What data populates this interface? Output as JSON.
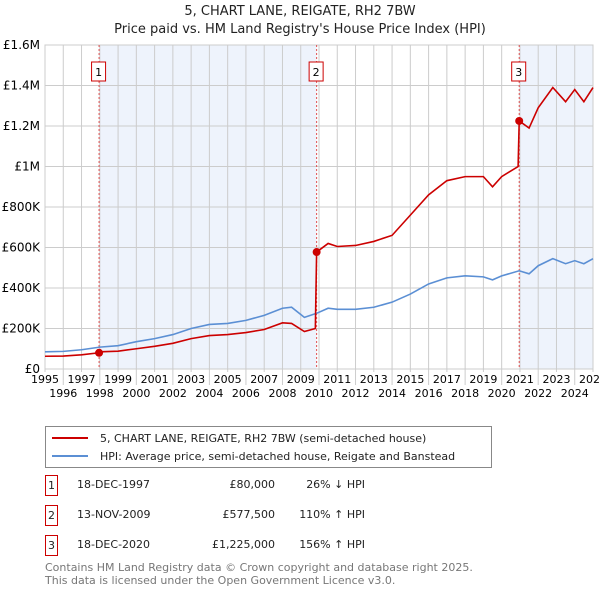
{
  "chart_data": {
    "type": "line",
    "title": "5, CHART LANE, REIGATE, RH2 7BW",
    "subtitle": "Price paid vs. HM Land Registry's House Price Index (HPI)",
    "xlim": [
      1995,
      2025
    ],
    "ylim": [
      0,
      1600000
    ],
    "x_ticks": [
      "1995",
      "1996",
      "1997",
      "1998",
      "1999",
      "2000",
      "2001",
      "2002",
      "2003",
      "2004",
      "2005",
      "2006",
      "2007",
      "2008",
      "2009",
      "2010",
      "2011",
      "2012",
      "2013",
      "2014",
      "2015",
      "2016",
      "2017",
      "2018",
      "2019",
      "2020",
      "2021",
      "2022",
      "2023",
      "2024",
      "2025"
    ],
    "y_ticks": [
      {
        "v": 0,
        "label": "£0"
      },
      {
        "v": 200000,
        "label": "£200K"
      },
      {
        "v": 400000,
        "label": "£400K"
      },
      {
        "v": 600000,
        "label": "£600K"
      },
      {
        "v": 800000,
        "label": "£800K"
      },
      {
        "v": 1000000,
        "label": "£1M"
      },
      {
        "v": 1200000,
        "label": "£1.2M"
      },
      {
        "v": 1400000,
        "label": "£1.4M"
      },
      {
        "v": 1600000,
        "label": "£1.6M"
      }
    ],
    "grid": true,
    "series": [
      {
        "name": "5, CHART LANE, REIGATE, RH2 7BW (semi-detached house)",
        "color": "#cc0000",
        "points": [
          [
            1995,
            63000
          ],
          [
            1996,
            64000
          ],
          [
            1997,
            70000
          ],
          [
            1997.96,
            80000
          ],
          [
            1998,
            85000
          ],
          [
            1999,
            88000
          ],
          [
            2000,
            100000
          ],
          [
            2001,
            112000
          ],
          [
            2002,
            127000
          ],
          [
            2003,
            150000
          ],
          [
            2004,
            165000
          ],
          [
            2005,
            170000
          ],
          [
            2006,
            180000
          ],
          [
            2007,
            195000
          ],
          [
            2008,
            228000
          ],
          [
            2008.5,
            225000
          ],
          [
            2009.2,
            185000
          ],
          [
            2009.8,
            200000
          ],
          [
            2009.87,
            577500
          ],
          [
            2010.5,
            620000
          ],
          [
            2011,
            605000
          ],
          [
            2012,
            610000
          ],
          [
            2013,
            630000
          ],
          [
            2014,
            660000
          ],
          [
            2015,
            760000
          ],
          [
            2016,
            860000
          ],
          [
            2017,
            930000
          ],
          [
            2018,
            950000
          ],
          [
            2019,
            950000
          ],
          [
            2019.5,
            900000
          ],
          [
            2020,
            950000
          ],
          [
            2020.9,
            1000000
          ],
          [
            2020.96,
            1225000
          ],
          [
            2021.5,
            1190000
          ],
          [
            2022,
            1290000
          ],
          [
            2022.8,
            1390000
          ],
          [
            2023.5,
            1320000
          ],
          [
            2024,
            1380000
          ],
          [
            2024.5,
            1320000
          ],
          [
            2025,
            1390000
          ]
        ]
      },
      {
        "name": "HPI: Average price, semi-detached house, Reigate and Banstead",
        "color": "#5b8fd4",
        "points": [
          [
            1995,
            85000
          ],
          [
            1996,
            87000
          ],
          [
            1997,
            95000
          ],
          [
            1998,
            108000
          ],
          [
            1999,
            115000
          ],
          [
            2000,
            135000
          ],
          [
            2001,
            150000
          ],
          [
            2002,
            170000
          ],
          [
            2003,
            200000
          ],
          [
            2004,
            220000
          ],
          [
            2005,
            225000
          ],
          [
            2006,
            240000
          ],
          [
            2007,
            265000
          ],
          [
            2008,
            300000
          ],
          [
            2008.5,
            305000
          ],
          [
            2009.2,
            255000
          ],
          [
            2009.87,
            275000
          ],
          [
            2010.5,
            300000
          ],
          [
            2011,
            295000
          ],
          [
            2012,
            295000
          ],
          [
            2013,
            305000
          ],
          [
            2014,
            330000
          ],
          [
            2015,
            370000
          ],
          [
            2016,
            420000
          ],
          [
            2017,
            450000
          ],
          [
            2018,
            460000
          ],
          [
            2019,
            455000
          ],
          [
            2019.5,
            440000
          ],
          [
            2020,
            460000
          ],
          [
            2020.96,
            485000
          ],
          [
            2021.5,
            470000
          ],
          [
            2022,
            510000
          ],
          [
            2022.8,
            545000
          ],
          [
            2023.5,
            520000
          ],
          [
            2024,
            535000
          ],
          [
            2024.5,
            520000
          ],
          [
            2025,
            545000
          ]
        ]
      }
    ],
    "sales": [
      {
        "label": "1",
        "x": 1997.96,
        "y": 80000
      },
      {
        "label": "2",
        "x": 2009.87,
        "y": 577500
      },
      {
        "label": "3",
        "x": 2020.96,
        "y": 1225000
      }
    ],
    "legend_position": "below"
  },
  "table": [
    {
      "num": "1",
      "date": "18-DEC-1997",
      "price": "£80,000",
      "hpi": "26% ↓ HPI"
    },
    {
      "num": "2",
      "date": "13-NOV-2009",
      "price": "£577,500",
      "hpi": "110% ↑ HPI"
    },
    {
      "num": "3",
      "date": "18-DEC-2020",
      "price": "£1,225,000",
      "hpi": "156% ↑ HPI"
    }
  ],
  "footer": {
    "line1": "Contains HM Land Registry data © Crown copyright and database right 2025.",
    "line2": "This data is licensed under the Open Government Licence v3.0."
  }
}
